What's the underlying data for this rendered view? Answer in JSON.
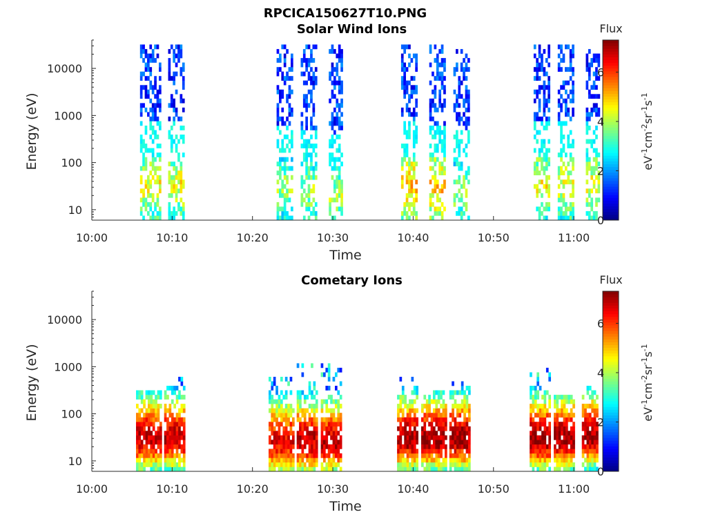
{
  "figure_title": "RPCICA150627T10.PNG",
  "colorbar": {
    "label": "Flux",
    "unit": "eV-1cm-2sr-1s-1",
    "unit_parts": [
      "eV",
      "-1",
      "cm",
      "-2",
      "sr",
      "-1",
      "s",
      "-1"
    ],
    "range": [
      0,
      7.3
    ],
    "ticks": [
      "0",
      "2",
      "4",
      "6"
    ],
    "colormap": "jet"
  },
  "chart_data": [
    {
      "type": "heatmap",
      "title": "Solar Wind Ions",
      "xlabel": "Time",
      "ylabel": "Energy (eV)",
      "x_ticks": [
        "10:00",
        "10:10",
        "10:20",
        "10:30",
        "10:40",
        "10:50",
        "11:00"
      ],
      "xlim": [
        "10:00",
        "11:03"
      ],
      "y_ticks": [
        "10",
        "100",
        "1000",
        "10000"
      ],
      "ylim": [
        6,
        40000
      ],
      "yscale": "log",
      "bursts": [
        {
          "start": "10:06",
          "end": "10:08.5",
          "max_energy": 30000,
          "hot_energy": 35,
          "peak_flux": 4.5
        },
        {
          "start": "10:09.5",
          "end": "10:11.5",
          "max_energy": 30000,
          "hot_energy": 35,
          "peak_flux": 4.5
        },
        {
          "start": "10:23",
          "end": "10:25",
          "max_energy": 35000,
          "hot_energy": 30,
          "peak_flux": 4
        },
        {
          "start": "10:26",
          "end": "10:28",
          "max_energy": 35000,
          "hot_energy": 25,
          "peak_flux": 4
        },
        {
          "start": "10:29.5",
          "end": "10:31",
          "max_energy": 30000,
          "hot_energy": 20,
          "peak_flux": 4
        },
        {
          "start": "10:38.5",
          "end": "10:40.5",
          "max_energy": 35000,
          "hot_energy": 35,
          "peak_flux": 5
        },
        {
          "start": "10:42",
          "end": "10:44",
          "max_energy": 30000,
          "hot_energy": 30,
          "peak_flux": 5
        },
        {
          "start": "10:45",
          "end": "10:47",
          "max_energy": 25000,
          "hot_energy": 25,
          "peak_flux": 4
        },
        {
          "start": "10:55",
          "end": "10:57",
          "max_energy": 35000,
          "hot_energy": 35,
          "peak_flux": 4.5
        },
        {
          "start": "10:58",
          "end": "11:00",
          "max_energy": 30000,
          "hot_energy": 35,
          "peak_flux": 4.5
        },
        {
          "start": "11:01.5",
          "end": "11:03",
          "max_energy": 25000,
          "hot_energy": 35,
          "peak_flux": 4.5
        }
      ]
    },
    {
      "type": "heatmap",
      "title": "Cometary Ions",
      "xlabel": "Time",
      "ylabel": "Energy (eV)",
      "x_ticks": [
        "10:00",
        "10:10",
        "10:20",
        "10:30",
        "10:40",
        "10:50",
        "11:00"
      ],
      "xlim": [
        "10:00",
        "11:03"
      ],
      "y_ticks": [
        "10",
        "100",
        "1000",
        "10000"
      ],
      "ylim": [
        6,
        40000
      ],
      "yscale": "log",
      "bursts": [
        {
          "start": "10:05.5",
          "end": "10:08.5",
          "max_energy": 350,
          "hot_energy": 30,
          "peak_flux": 6.8
        },
        {
          "start": "10:09",
          "end": "10:11.5",
          "max_energy": 600,
          "hot_energy": 30,
          "peak_flux": 6.8
        },
        {
          "start": "10:22",
          "end": "10:25",
          "max_energy": 600,
          "hot_energy": 25,
          "peak_flux": 6.5
        },
        {
          "start": "10:25.5",
          "end": "10:28",
          "max_energy": 1200,
          "hot_energy": 25,
          "peak_flux": 6.8
        },
        {
          "start": "10:28.5",
          "end": "10:31",
          "max_energy": 1200,
          "hot_energy": 25,
          "peak_flux": 6.8
        },
        {
          "start": "10:38",
          "end": "10:40.5",
          "max_energy": 600,
          "hot_energy": 30,
          "peak_flux": 7
        },
        {
          "start": "10:41",
          "end": "10:44",
          "max_energy": 350,
          "hot_energy": 30,
          "peak_flux": 7
        },
        {
          "start": "10:44.5",
          "end": "10:47",
          "max_energy": 500,
          "hot_energy": 30,
          "peak_flux": 7
        },
        {
          "start": "10:54.5",
          "end": "10:57",
          "max_energy": 900,
          "hot_energy": 30,
          "peak_flux": 7
        },
        {
          "start": "10:57.5",
          "end": "11:00",
          "max_energy": 250,
          "hot_energy": 30,
          "peak_flux": 7
        },
        {
          "start": "11:01",
          "end": "11:03",
          "max_energy": 400,
          "hot_energy": 35,
          "peak_flux": 7
        }
      ]
    }
  ]
}
